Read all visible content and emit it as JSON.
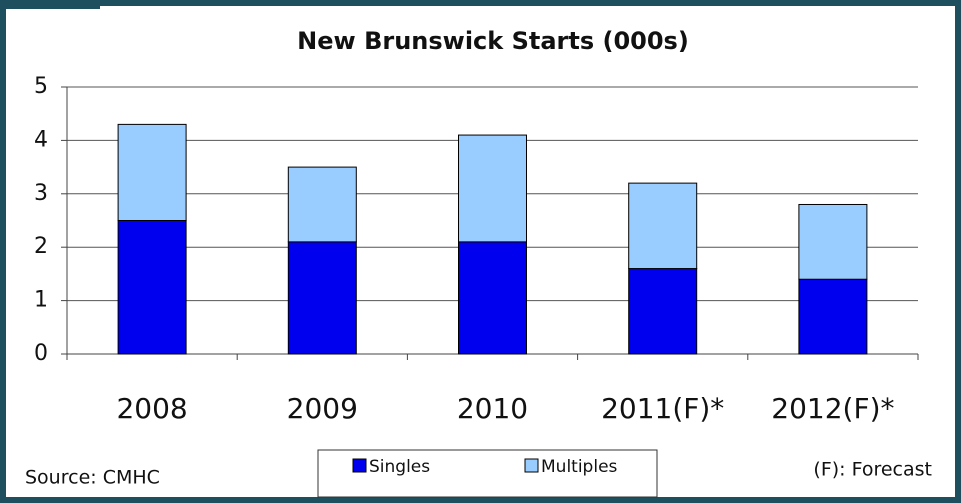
{
  "chart_data": {
    "type": "stacked_bar",
    "title": "New Brunswick Starts (000s)",
    "categories": [
      "2008",
      "2009",
      "2010",
      "2011(F)*",
      "2012(F)*"
    ],
    "series": [
      {
        "name": "Singles",
        "color": "#0000ee",
        "values": [
          2.5,
          2.1,
          2.1,
          1.6,
          1.4
        ]
      },
      {
        "name": "Multiples",
        "color": "#99ccff",
        "values": [
          1.8,
          1.4,
          2.0,
          1.6,
          1.4
        ]
      }
    ],
    "ylim": [
      0,
      5
    ],
    "yticks": [
      0,
      1,
      2,
      3,
      4,
      5
    ],
    "grid": true,
    "legend": "bottom",
    "annotations": [
      "Source: CMHC",
      "(F): Forecast"
    ]
  }
}
